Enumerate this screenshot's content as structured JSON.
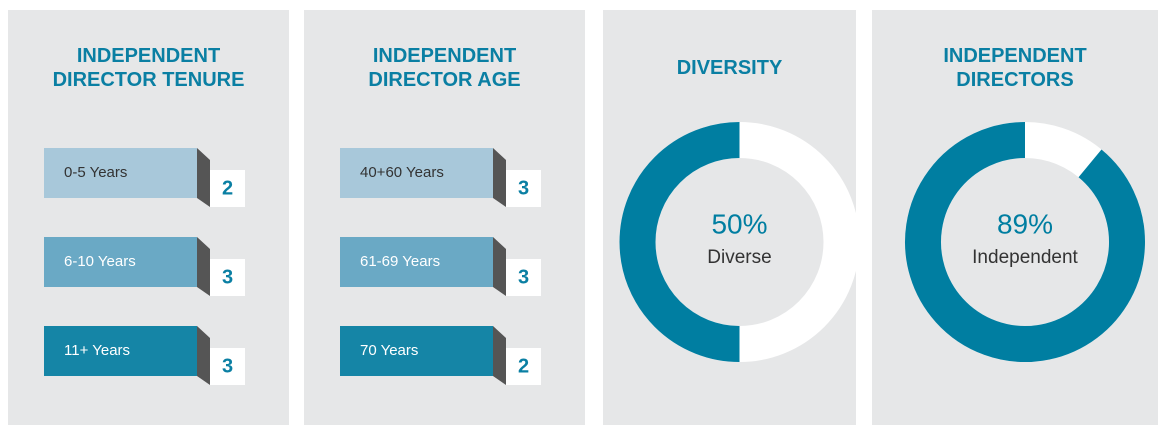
{
  "chart_data": [
    {
      "type": "tiles",
      "title": "INDEPENDENT DIRECTOR TENURE",
      "categories": [
        "0-5 Years",
        "6-10 Years",
        "11+ Years"
      ],
      "values": [
        2,
        3,
        3
      ],
      "colors": [
        "#a8c8da",
        "#6aa9c5",
        "#1585a6"
      ]
    },
    {
      "type": "tiles",
      "title": "INDEPENDENT DIRECTOR AGE",
      "categories": [
        "40+60 Years",
        "61-69 Years",
        "70 Years"
      ],
      "values": [
        3,
        3,
        2
      ],
      "colors": [
        "#a8c8da",
        "#6aa9c5",
        "#1585a6"
      ]
    },
    {
      "type": "donut",
      "title": "DIVERSITY",
      "values": [
        50
      ],
      "value_labels": [
        "50%"
      ],
      "label": "Diverse",
      "color": "#007ea1"
    },
    {
      "type": "donut",
      "title": "INDEPENDENT DIRECTORS",
      "values": [
        89
      ],
      "value_labels": [
        "89%"
      ],
      "label": "Independent",
      "color": "#007ea1"
    }
  ]
}
